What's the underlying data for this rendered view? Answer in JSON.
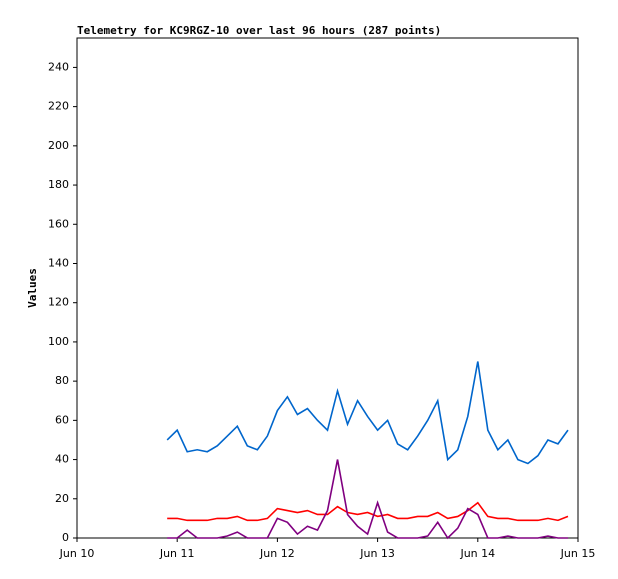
{
  "chart_data": {
    "type": "line",
    "title": "Telemetry for KC9RGZ-10 over last 96 hours (287 points)",
    "ylabel": "Values",
    "x": [
      0.9,
      1.0,
      1.1,
      1.2,
      1.3,
      1.4,
      1.5,
      1.6,
      1.7,
      1.8,
      1.9,
      2.0,
      2.1,
      2.2,
      2.3,
      2.4,
      2.5,
      2.6,
      2.7,
      2.8,
      2.9,
      3.0,
      3.1,
      3.2,
      3.3,
      3.4,
      3.5,
      3.6,
      3.7,
      3.8,
      3.9,
      4.0,
      4.1,
      4.2,
      4.3,
      4.4,
      4.5,
      4.6,
      4.7,
      4.8,
      4.9
    ],
    "series": [
      {
        "color": "#0066cc",
        "values": [
          50,
          55,
          44,
          45,
          44,
          47,
          52,
          57,
          47,
          45,
          52,
          65,
          72,
          63,
          66,
          60,
          55,
          75,
          58,
          70,
          62,
          55,
          60,
          48,
          45,
          52,
          60,
          70,
          40,
          45,
          62,
          90,
          55,
          45,
          50,
          40,
          38,
          42,
          50,
          48,
          55
        ]
      },
      {
        "color": "#ff0000",
        "values": [
          10,
          10,
          9,
          9,
          9,
          10,
          10,
          11,
          9,
          9,
          10,
          15,
          14,
          13,
          14,
          12,
          12,
          16,
          13,
          12,
          13,
          11,
          12,
          10,
          10,
          11,
          11,
          13,
          10,
          11,
          14,
          18,
          11,
          10,
          10,
          9,
          9,
          9,
          10,
          9,
          11
        ]
      },
      {
        "color": "#800080",
        "values": [
          0,
          0,
          4,
          0,
          0,
          0,
          1,
          3,
          0,
          0,
          0,
          10,
          8,
          2,
          6,
          4,
          14,
          40,
          12,
          6,
          2,
          18,
          3,
          0,
          0,
          0,
          1,
          8,
          0,
          5,
          15,
          12,
          0,
          0,
          1,
          0,
          0,
          0,
          1,
          0,
          0
        ]
      }
    ],
    "xlim": [
      0,
      5
    ],
    "xticks": [
      {
        "value": 0,
        "label": "Jun 10"
      },
      {
        "value": 1,
        "label": "Jun 11"
      },
      {
        "value": 2,
        "label": "Jun 12"
      },
      {
        "value": 3,
        "label": "Jun 13"
      },
      {
        "value": 4,
        "label": "Jun 14"
      },
      {
        "value": 5,
        "label": "Jun 15"
      }
    ],
    "ylim": [
      0,
      255
    ],
    "yticks": [
      0,
      20,
      40,
      60,
      80,
      100,
      120,
      140,
      160,
      180,
      200,
      220,
      240
    ]
  }
}
